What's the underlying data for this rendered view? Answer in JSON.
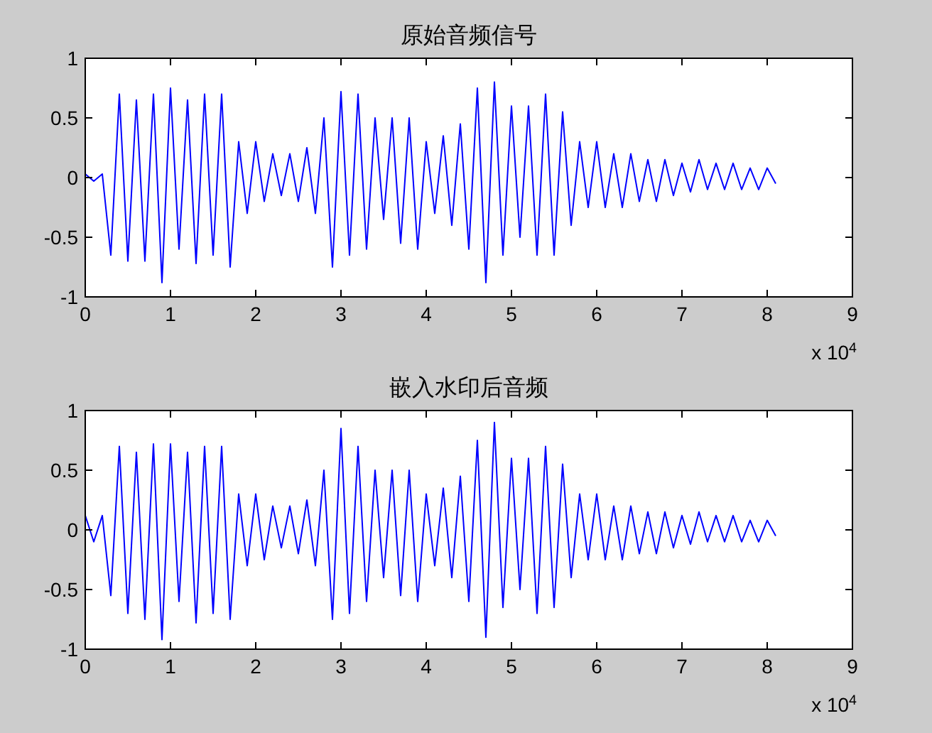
{
  "chart_data": [
    {
      "type": "line",
      "title": "原始音频信号",
      "annotations": [
        "x 10$^{4}$"
      ],
      "x": [
        0,
        0.1,
        0.2,
        0.3,
        0.4,
        0.5,
        0.6,
        0.7,
        0.8,
        0.9,
        1,
        1.1,
        1.2,
        1.3,
        1.4,
        1.5,
        1.6,
        1.7,
        1.8,
        1.9,
        2,
        2.1,
        2.2,
        2.3,
        2.4,
        2.5,
        2.6,
        2.7,
        2.8,
        2.9,
        3,
        3.1,
        3.2,
        3.3,
        3.4,
        3.5,
        3.6,
        3.7,
        3.8,
        3.9,
        4,
        4.1,
        4.2,
        4.3,
        4.4,
        4.5,
        4.6,
        4.7,
        4.8,
        4.9,
        5,
        5.1,
        5.2,
        5.3,
        5.4,
        5.5,
        5.6,
        5.7,
        5.8,
        5.9,
        6,
        6.1,
        6.2,
        6.3,
        6.4,
        6.5,
        6.6,
        6.7,
        6.8,
        6.9,
        7,
        7.1,
        7.2,
        7.3,
        7.4,
        7.5,
        7.6,
        7.7,
        7.8,
        7.9,
        8,
        8.1
      ],
      "series": [
        {
          "color": "#0000ff",
          "values": [
            0.03,
            -0.03,
            0.03,
            -0.65,
            0.7,
            -0.7,
            0.65,
            -0.7,
            0.7,
            -0.88,
            0.75,
            -0.6,
            0.65,
            -0.72,
            0.7,
            -0.65,
            0.7,
            -0.75,
            0.3,
            -0.3,
            0.3,
            -0.2,
            0.2,
            -0.15,
            0.2,
            -0.2,
            0.25,
            -0.3,
            0.5,
            -0.75,
            0.72,
            -0.65,
            0.7,
            -0.6,
            0.5,
            -0.35,
            0.5,
            -0.55,
            0.5,
            -0.6,
            0.3,
            -0.3,
            0.35,
            -0.4,
            0.45,
            -0.6,
            0.75,
            -0.88,
            0.8,
            -0.65,
            0.6,
            -0.5,
            0.6,
            -0.65,
            0.7,
            -0.65,
            0.55,
            -0.4,
            0.3,
            -0.25,
            0.3,
            -0.25,
            0.2,
            -0.25,
            0.2,
            -0.2,
            0.15,
            -0.2,
            0.15,
            -0.15,
            0.12,
            -0.12,
            0.15,
            -0.1,
            0.12,
            -0.1,
            0.12,
            -0.1,
            0.08,
            -0.1,
            0.08,
            -0.05
          ]
        }
      ],
      "xlim": [
        0,
        9
      ],
      "ylim": [
        -1,
        1
      ],
      "xticks": [
        0,
        1,
        2,
        3,
        4,
        5,
        6,
        7,
        8,
        9
      ],
      "yticks": [
        -1,
        -0.5,
        0,
        0.5,
        1
      ],
      "grid": false
    },
    {
      "type": "line",
      "title": "嵌入水印后音频",
      "annotations": [
        "x 10$^{4}$"
      ],
      "x": [
        0,
        0.1,
        0.2,
        0.3,
        0.4,
        0.5,
        0.6,
        0.7,
        0.8,
        0.9,
        1,
        1.1,
        1.2,
        1.3,
        1.4,
        1.5,
        1.6,
        1.7,
        1.8,
        1.9,
        2,
        2.1,
        2.2,
        2.3,
        2.4,
        2.5,
        2.6,
        2.7,
        2.8,
        2.9,
        3,
        3.1,
        3.2,
        3.3,
        3.4,
        3.5,
        3.6,
        3.7,
        3.8,
        3.9,
        4,
        4.1,
        4.2,
        4.3,
        4.4,
        4.5,
        4.6,
        4.7,
        4.8,
        4.9,
        5,
        5.1,
        5.2,
        5.3,
        5.4,
        5.5,
        5.6,
        5.7,
        5.8,
        5.9,
        6,
        6.1,
        6.2,
        6.3,
        6.4,
        6.5,
        6.6,
        6.7,
        6.8,
        6.9,
        7,
        7.1,
        7.2,
        7.3,
        7.4,
        7.5,
        7.6,
        7.7,
        7.8,
        7.9,
        8,
        8.1
      ],
      "series": [
        {
          "color": "#0000ff",
          "values": [
            0.12,
            -0.1,
            0.12,
            -0.55,
            0.7,
            -0.7,
            0.65,
            -0.75,
            0.72,
            -0.92,
            0.72,
            -0.6,
            0.65,
            -0.78,
            0.7,
            -0.7,
            0.7,
            -0.75,
            0.3,
            -0.3,
            0.3,
            -0.25,
            0.2,
            -0.15,
            0.2,
            -0.2,
            0.25,
            -0.3,
            0.5,
            -0.75,
            0.85,
            -0.7,
            0.7,
            -0.6,
            0.5,
            -0.4,
            0.5,
            -0.55,
            0.5,
            -0.6,
            0.3,
            -0.3,
            0.35,
            -0.4,
            0.45,
            -0.6,
            0.75,
            -0.9,
            0.9,
            -0.65,
            0.6,
            -0.5,
            0.6,
            -0.7,
            0.7,
            -0.65,
            0.55,
            -0.4,
            0.3,
            -0.25,
            0.3,
            -0.25,
            0.2,
            -0.25,
            0.2,
            -0.2,
            0.15,
            -0.2,
            0.15,
            -0.15,
            0.12,
            -0.12,
            0.15,
            -0.1,
            0.12,
            -0.1,
            0.12,
            -0.1,
            0.08,
            -0.1,
            0.08,
            -0.05
          ]
        }
      ],
      "xlim": [
        0,
        9
      ],
      "ylim": [
        -1,
        1
      ],
      "xticks": [
        0,
        1,
        2,
        3,
        4,
        5,
        6,
        7,
        8,
        9
      ],
      "yticks": [
        -1,
        -0.5,
        0,
        0.5,
        1
      ],
      "grid": false
    }
  ]
}
